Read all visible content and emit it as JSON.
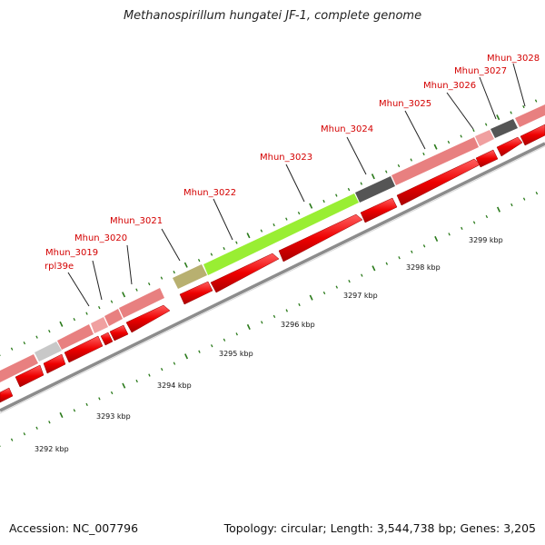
{
  "title": "Methanospirillum hungatei JF-1, complete genome",
  "footer": {
    "accession": "Accession: NC_007796",
    "topology": "Topology: circular; Length: 3,544,738 bp; Genes: 3,205"
  },
  "colors": {
    "cds_arrow": "#ee0000",
    "gene_pink": "#e88080",
    "gene_grey": "#c8c8c8",
    "gene_dark": "#555555",
    "gene_olive": "#b8b070",
    "gene_green": "#99ee33",
    "tick": "#2a7a1a",
    "backbone": "#8c8c8c",
    "label": "#d40000"
  },
  "gene_labels": [
    "rpl39e",
    "Mhun_3019",
    "Mhun_3020",
    "Mhun_3021",
    "Mhun_3022",
    "Mhun_3023",
    "Mhun_3024",
    "Mhun_3025",
    "Mhun_3026",
    "Mhun_3027",
    "Mhun_3028"
  ],
  "kbp_labels": [
    "3292 kbp",
    "3293 kbp",
    "3294 kbp",
    "3295 kbp",
    "3296 kbp",
    "3297 kbp",
    "3298 kbp",
    "3299 kbp"
  ]
}
